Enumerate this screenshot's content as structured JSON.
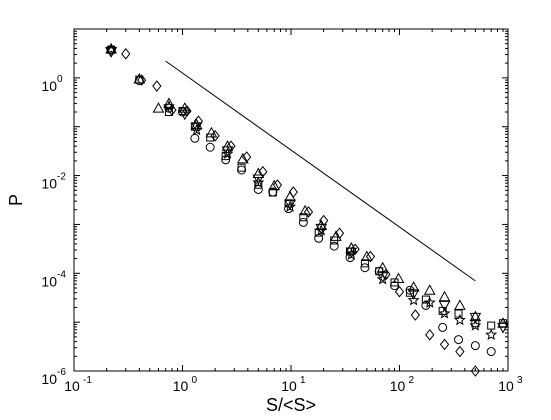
{
  "chart_data": {
    "type": "scatter",
    "title": "",
    "xlabel": "S/<S>",
    "ylabel": "P",
    "xscale": "log",
    "yscale": "log",
    "xlim": [
      0.1,
      1000
    ],
    "ylim": [
      1e-06,
      10
    ],
    "grid": false,
    "legend": "none",
    "x_ticks": [
      {
        "value": 0.1,
        "base": "10",
        "exp": "-1"
      },
      {
        "value": 1,
        "base": "10",
        "exp": "0"
      },
      {
        "value": 10,
        "base": "10",
        "exp": "1"
      },
      {
        "value": 100,
        "base": "10",
        "exp": "2"
      },
      {
        "value": 1000,
        "base": "10",
        "exp": "3"
      }
    ],
    "y_ticks": [
      {
        "value": 1,
        "base": "10",
        "exp": "0"
      },
      {
        "value": 0.01,
        "base": "10",
        "exp": "-2"
      },
      {
        "value": 0.0001,
        "base": "10",
        "exp": "-4"
      },
      {
        "value": 1e-06,
        "base": "10",
        "exp": "-6"
      }
    ],
    "series": [
      {
        "marker": "circle",
        "x": [
          0.22,
          0.4,
          0.75,
          1.0,
          1.3,
          1.8,
          2.5,
          3.5,
          5.0,
          6.8,
          9.5,
          13,
          18,
          25,
          35,
          48,
          65,
          90,
          125,
          175,
          250,
          350,
          500,
          700
        ],
        "y": [
          3.7,
          0.88,
          0.24,
          0.2,
          0.058,
          0.038,
          0.021,
          0.013,
          0.0052,
          0.0046,
          0.0021,
          0.0011,
          0.00052,
          0.00036,
          0.00021,
          0.00013,
          0.00011,
          5.6e-05,
          4.5e-05,
          2.2e-05,
          7.8e-06,
          4.4e-06,
          3.3e-06,
          2.5e-06
        ]
      },
      {
        "marker": "square",
        "x": [
          0.22,
          0.4,
          0.75,
          1.0,
          1.3,
          1.8,
          2.5,
          3.5,
          5.0,
          6.8,
          9.5,
          13,
          18,
          25,
          35,
          48,
          65,
          90,
          125,
          175,
          250,
          350,
          500,
          700,
          900
        ],
        "y": [
          3.8,
          0.92,
          0.2,
          0.21,
          0.1,
          0.06,
          0.025,
          0.0145,
          0.0065,
          0.0045,
          0.0027,
          0.0014,
          0.00068,
          0.00047,
          0.00028,
          0.00016,
          0.00011,
          6.5e-05,
          4e-05,
          2.9e-05,
          1.7e-05,
          1.5e-05,
          9.5e-06,
          8.5e-06,
          9.5e-06
        ]
      },
      {
        "marker": "diamond",
        "x": [
          0.22,
          0.3,
          0.42,
          0.58,
          0.8,
          1.1,
          1.4,
          2.0,
          2.8,
          3.9,
          5.5,
          7.5,
          10.5,
          14.5,
          20,
          28,
          39,
          54,
          75,
          100,
          140,
          190,
          260,
          360,
          500
        ],
        "y": [
          3.5,
          3.1,
          0.9,
          0.68,
          0.22,
          0.21,
          0.13,
          0.065,
          0.04,
          0.024,
          0.012,
          0.0064,
          0.0046,
          0.0018,
          0.0012,
          0.00066,
          0.00031,
          0.00022,
          9.5e-05,
          4.2e-05,
          1.4e-05,
          5.5e-06,
          3.5e-06,
          2.5e-06,
          1e-06
        ]
      },
      {
        "marker": "triangle-up",
        "x": [
          0.22,
          0.4,
          0.6,
          0.75,
          1.05,
          1.35,
          1.85,
          2.6,
          3.6,
          5.0,
          7.0,
          9.8,
          13.5,
          19,
          26,
          36,
          50,
          70,
          98,
          135,
          190,
          260,
          360,
          500,
          900
        ],
        "y": [
          3.9,
          0.95,
          0.24,
          0.3,
          0.24,
          0.11,
          0.075,
          0.04,
          0.022,
          0.011,
          0.0062,
          0.0037,
          0.0019,
          0.00095,
          0.00057,
          0.00033,
          0.00022,
          0.00013,
          7.8e-05,
          5.2e-05,
          4.5e-05,
          3.3e-05,
          2.2e-05,
          1.3e-05,
          9.5e-06
        ]
      },
      {
        "marker": "triangle-down",
        "x": [
          0.22,
          1.05,
          1.35,
          2.6,
          5.0,
          9.8,
          19,
          36,
          70,
          135,
          260,
          500,
          900
        ],
        "y": [
          3.4,
          0.18,
          0.1,
          0.032,
          0.0085,
          0.0026,
          0.00083,
          0.00027,
          8.5e-05,
          3.8e-05,
          2.2e-05,
          1.25e-05,
          7.8e-06
        ]
      },
      {
        "marker": "star",
        "x": [
          0.22,
          0.75,
          1.35,
          2.6,
          5.0,
          9.8,
          19,
          36,
          70,
          135,
          190,
          260,
          360,
          500,
          700
        ],
        "y": [
          3.9,
          0.26,
          0.085,
          0.028,
          0.0072,
          0.0023,
          0.00075,
          0.00024,
          7.5e-05,
          2.8e-05,
          2.5e-05,
          1.5e-05,
          1.1e-05,
          8.5e-06,
          5.5e-06
        ]
      }
    ],
    "reference_line": {
      "x": [
        0.7,
        500
      ],
      "y": [
        2.2,
        7e-05
      ]
    }
  }
}
